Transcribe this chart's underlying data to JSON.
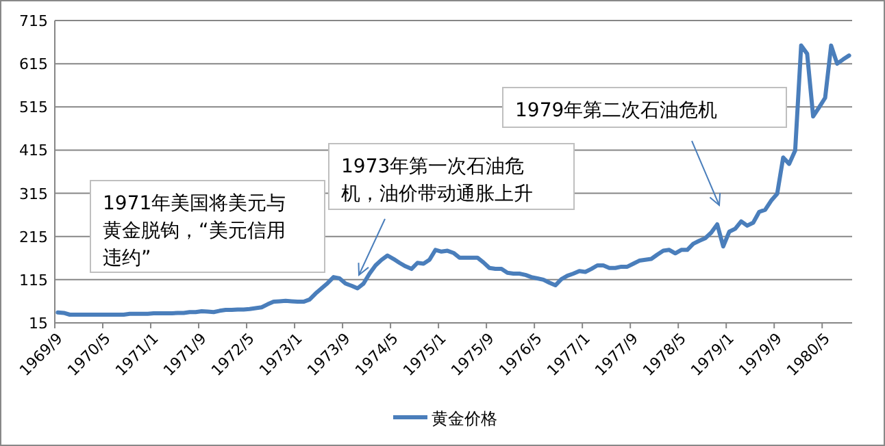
{
  "chart_data": {
    "type": "line",
    "categories": [
      "1969/9",
      null,
      null,
      null,
      null,
      null,
      null,
      null,
      "1970/5",
      null,
      null,
      null,
      null,
      null,
      null,
      null,
      "1971/1",
      null,
      null,
      null,
      null,
      null,
      null,
      null,
      "1971/9",
      null,
      null,
      null,
      null,
      null,
      null,
      null,
      "1972/5",
      null,
      null,
      null,
      null,
      null,
      null,
      null,
      "1973/1",
      null,
      null,
      null,
      null,
      null,
      null,
      null,
      "1973/9",
      null,
      null,
      null,
      null,
      null,
      null,
      null,
      "1974/5",
      null,
      null,
      null,
      null,
      null,
      null,
      null,
      "1975/1",
      null,
      null,
      null,
      null,
      null,
      null,
      null,
      "1975/9",
      null,
      null,
      null,
      null,
      null,
      null,
      null,
      "1976/5",
      null,
      null,
      null,
      null,
      null,
      null,
      null,
      "1977/1",
      null,
      null,
      null,
      null,
      null,
      null,
      null,
      "1977/9",
      null,
      null,
      null,
      null,
      null,
      null,
      null,
      "1978/5",
      null,
      null,
      null,
      null,
      null,
      null,
      null,
      "1979/1",
      null,
      null,
      null,
      null,
      null,
      null,
      null,
      "1979/9",
      null,
      null,
      null,
      null,
      null,
      null,
      null,
      "1980/5",
      null,
      null,
      null,
      null
    ],
    "series": [
      {
        "name": "黄金价格",
        "color": "#4a7ebb",
        "values": [
          39,
          38,
          34,
          34,
          34,
          34,
          34,
          34,
          34,
          34,
          34,
          34,
          36,
          36,
          36,
          36,
          37,
          37,
          37,
          37,
          38,
          38,
          40,
          40,
          42,
          41,
          40,
          43,
          45,
          45,
          46,
          46,
          47,
          49,
          51,
          58,
          64,
          65,
          66,
          65,
          64,
          64,
          69,
          83,
          95,
          107,
          121,
          118,
          106,
          101,
          95,
          106,
          129,
          148,
          161,
          171,
          163,
          154,
          146,
          140,
          154,
          152,
          161,
          184,
          180,
          182,
          177,
          166,
          166,
          166,
          166,
          155,
          142,
          140,
          140,
          131,
          129,
          129,
          126,
          121,
          118,
          115,
          108,
          102,
          116,
          124,
          129,
          135,
          133,
          140,
          148,
          148,
          142,
          142,
          145,
          145,
          152,
          159,
          161,
          163,
          173,
          182,
          184,
          176,
          184,
          184,
          198,
          205,
          211,
          224,
          243,
          192,
          226,
          233,
          250,
          240,
          247,
          272,
          277,
          298,
          314,
          398,
          383,
          414,
          657,
          638,
          493,
          514,
          536,
          657,
          615,
          625,
          634
        ]
      }
    ],
    "ylim": [
      15,
      715
    ],
    "yticks": [
      15,
      115,
      215,
      315,
      415,
      515,
      615,
      715
    ],
    "grid": "y",
    "legend": "bottom",
    "annotations": [
      "1971年美国将美元与黄金脱钩，“美元信用违约”",
      "1973年第一次石油危机，油价带动通胀上升",
      "1979年第二次石油危机"
    ]
  }
}
